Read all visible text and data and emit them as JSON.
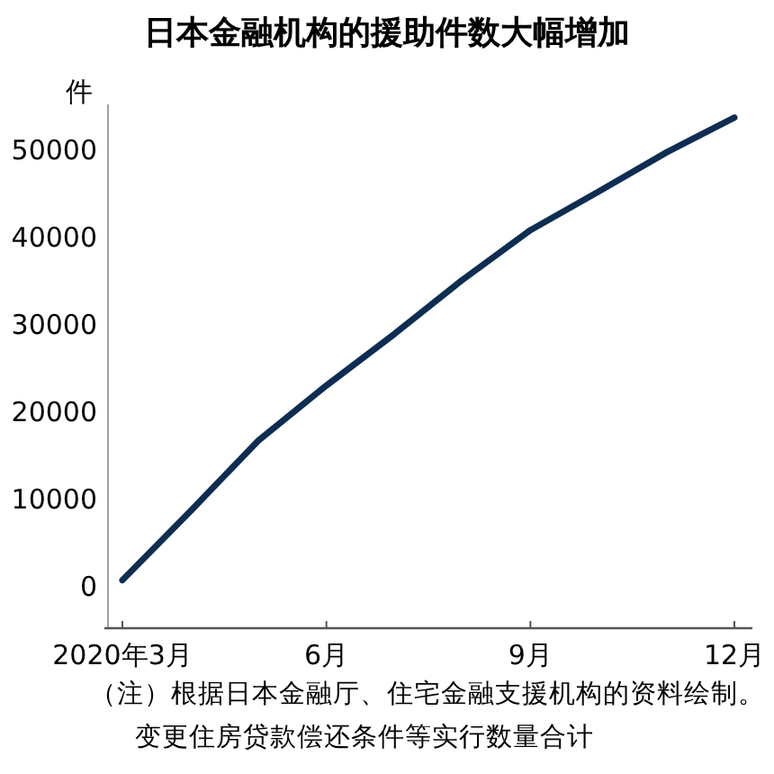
{
  "chart_data": {
    "type": "line",
    "title": "日本金融机构的援助件数大幅增加",
    "ylabel": "件",
    "categories": [
      "2020年3月",
      null,
      null,
      "6月",
      null,
      null,
      "9月",
      null,
      null,
      "12月"
    ],
    "series": [
      {
        "color": "#0d2d52",
        "values": [
          500,
          8400,
          16500,
          22800,
          28700,
          34900,
          40600,
          45000,
          49500,
          53500
        ]
      }
    ],
    "ylim": [
      -5000,
      55000
    ],
    "yticks": [
      0,
      10000,
      20000,
      30000,
      40000,
      50000
    ],
    "marker": "none",
    "line_style": "solid",
    "annotations": [
      "（注）根据日本金融厅、住宅金融支援机构的资料绘制。",
      "变更住房贷款偿还条件等实行数量合计"
    ]
  }
}
